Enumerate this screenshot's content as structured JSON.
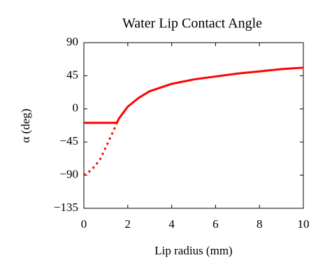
{
  "chart_data": {
    "type": "line",
    "title": "Water Lip Contact Angle",
    "xlabel": "Lip radius (mm)",
    "ylabel": "α (deg)",
    "xlim": [
      0,
      10
    ],
    "xticks": [
      0,
      2,
      4,
      6,
      8,
      10
    ],
    "ylim": [
      -135,
      90
    ],
    "yticks": [
      {
        "value": -135,
        "label": "−135"
      },
      {
        "value": -90,
        "label": "−90"
      },
      {
        "value": -45,
        "label": "−45"
      },
      0,
      45,
      90
    ],
    "grid": false,
    "series": [
      {
        "color": "#ff0000",
        "style": "solid",
        "x": [
          0,
          1.5,
          1.6,
          1.8,
          2,
          2.5,
          3,
          4,
          5,
          6,
          7,
          8,
          9,
          10
        ],
        "values": [
          -19,
          -19,
          -13,
          -5,
          3,
          15,
          24,
          34,
          40,
          44,
          48,
          51,
          54,
          56
        ]
      },
      {
        "color": "#ff0000",
        "style": "dotted",
        "x": [
          0,
          0.25,
          0.5,
          0.75,
          1.0,
          1.25,
          1.5
        ],
        "values": [
          -90,
          -85,
          -78,
          -68,
          -52,
          -36,
          -20
        ]
      }
    ]
  }
}
